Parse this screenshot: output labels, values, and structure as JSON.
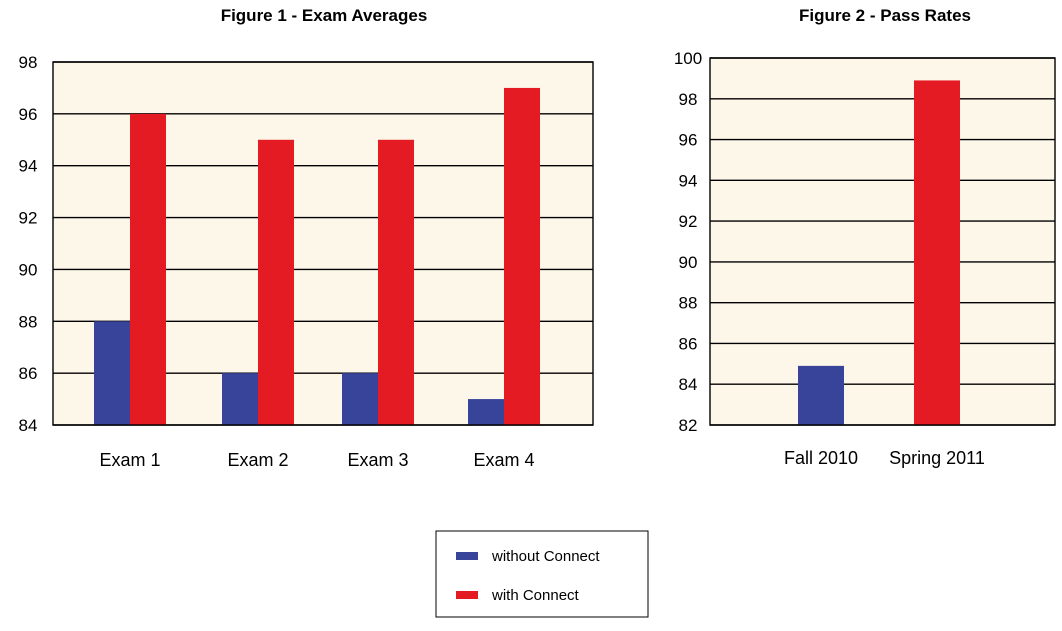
{
  "colors": {
    "without": "#37449a",
    "with": "#e51b24",
    "plot_bg": "#fdf7ea",
    "grid": "#000000"
  },
  "legend": {
    "items": [
      {
        "label": "without Connect",
        "color": "#37449a"
      },
      {
        "label": "with Connect",
        "color": "#e51b24"
      }
    ],
    "placement": "bottom-center"
  },
  "chart_data": [
    {
      "type": "bar",
      "title": "Figure 1 - Exam Averages",
      "xlabel": "",
      "ylabel": "",
      "ylim": [
        84,
        98
      ],
      "yticks": [
        84,
        86,
        88,
        90,
        92,
        94,
        96,
        98
      ],
      "grid": true,
      "categories": [
        "Exam 1",
        "Exam 2",
        "Exam 3",
        "Exam 4"
      ],
      "series": [
        {
          "name": "without Connect",
          "values": [
            88,
            86,
            86,
            85
          ]
        },
        {
          "name": "with Connect",
          "values": [
            96,
            95,
            95,
            97
          ]
        }
      ]
    },
    {
      "type": "bar",
      "title": "Figure 2 - Pass Rates",
      "xlabel": "",
      "ylabel": "",
      "ylim": [
        82,
        100
      ],
      "yticks": [
        82,
        84,
        86,
        88,
        90,
        92,
        94,
        96,
        98,
        100
      ],
      "grid": true,
      "categories": [
        "Fall 2010",
        "Spring 2011"
      ],
      "series": [
        {
          "name": "without Connect",
          "values": [
            84.9,
            null
          ]
        },
        {
          "name": "with Connect",
          "values": [
            null,
            98.9
          ]
        }
      ]
    }
  ]
}
